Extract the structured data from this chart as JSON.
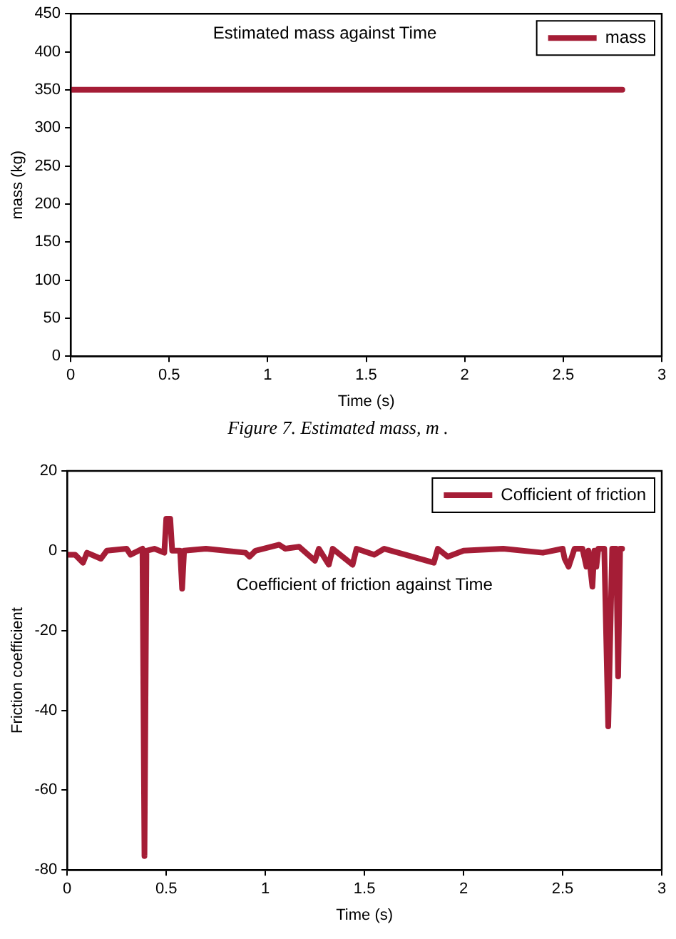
{
  "chart_data": [
    {
      "type": "line",
      "title": "Estimated mass against Time",
      "xlabel": "Time (s)",
      "ylabel": "mass (kg)",
      "legend": "top right",
      "grid": false,
      "marker": "none",
      "line_style": "solid",
      "xlim": [
        0,
        3
      ],
      "xticks": [
        0,
        0.5,
        1,
        1.5,
        2,
        2.5,
        3
      ],
      "ylim": [
        0,
        450
      ],
      "yticks": [
        0,
        50,
        100,
        150,
        200,
        250,
        300,
        350,
        400,
        450
      ],
      "series": [
        {
          "name": "mass",
          "color": "#a51d36",
          "x": [
            0,
            0.5,
            1,
            1.5,
            2,
            2.5,
            2.8
          ],
          "values": [
            350,
            350,
            350,
            350,
            350,
            350,
            350
          ]
        }
      ],
      "annotations": [
        "Figure 7. Estimated mass, m ."
      ]
    },
    {
      "type": "line",
      "title": "Coefficient of friction against Time",
      "xlabel": "Time (s)",
      "ylabel": "Friction coefficient",
      "legend": "top right",
      "grid": false,
      "marker": "none",
      "line_style": "solid",
      "xlim": [
        0,
        3
      ],
      "xticks": [
        0,
        0.5,
        1,
        1.5,
        2,
        2.5,
        3
      ],
      "ylim": [
        -80,
        20
      ],
      "yticks": [
        -80,
        -60,
        -40,
        -20,
        0,
        20
      ],
      "series": [
        {
          "name": "Cofficient of friction",
          "color": "#a51d36",
          "x": [
            0,
            0.04,
            0.08,
            0.1,
            0.17,
            0.2,
            0.3,
            0.32,
            0.38,
            0.39,
            0.4,
            0.44,
            0.49,
            0.5,
            0.52,
            0.53,
            0.57,
            0.58,
            0.59,
            0.7,
            0.9,
            0.92,
            0.95,
            1.07,
            1.1,
            1.17,
            1.25,
            1.27,
            1.32,
            1.34,
            1.44,
            1.46,
            1.55,
            1.6,
            1.85,
            1.87,
            1.92,
            2,
            2.2,
            2.4,
            2.5,
            2.51,
            2.53,
            2.56,
            2.6,
            2.62,
            2.63,
            2.65,
            2.66,
            2.67,
            2.68,
            2.71,
            2.73,
            2.75,
            2.77,
            2.78,
            2.79,
            2.8
          ],
          "values": [
            -1,
            -1,
            -3,
            -0.5,
            -2,
            0,
            0.5,
            -1,
            0.5,
            -76.5,
            0,
            0.5,
            -0.5,
            8,
            8,
            0,
            0,
            -9.5,
            0,
            0.5,
            -0.5,
            -1.5,
            0,
            1.5,
            0.5,
            1,
            -2.5,
            0.5,
            -3.5,
            0.5,
            -3.5,
            0.5,
            -1,
            0.5,
            -3,
            0.5,
            -1.5,
            0,
            0.5,
            -0.5,
            0.5,
            -2,
            -4,
            0.5,
            0.5,
            -4,
            0,
            -9,
            0,
            -4,
            0.5,
            0.5,
            -44,
            0.5,
            0.5,
            -31.5,
            0.5,
            0.5
          ]
        }
      ]
    }
  ]
}
